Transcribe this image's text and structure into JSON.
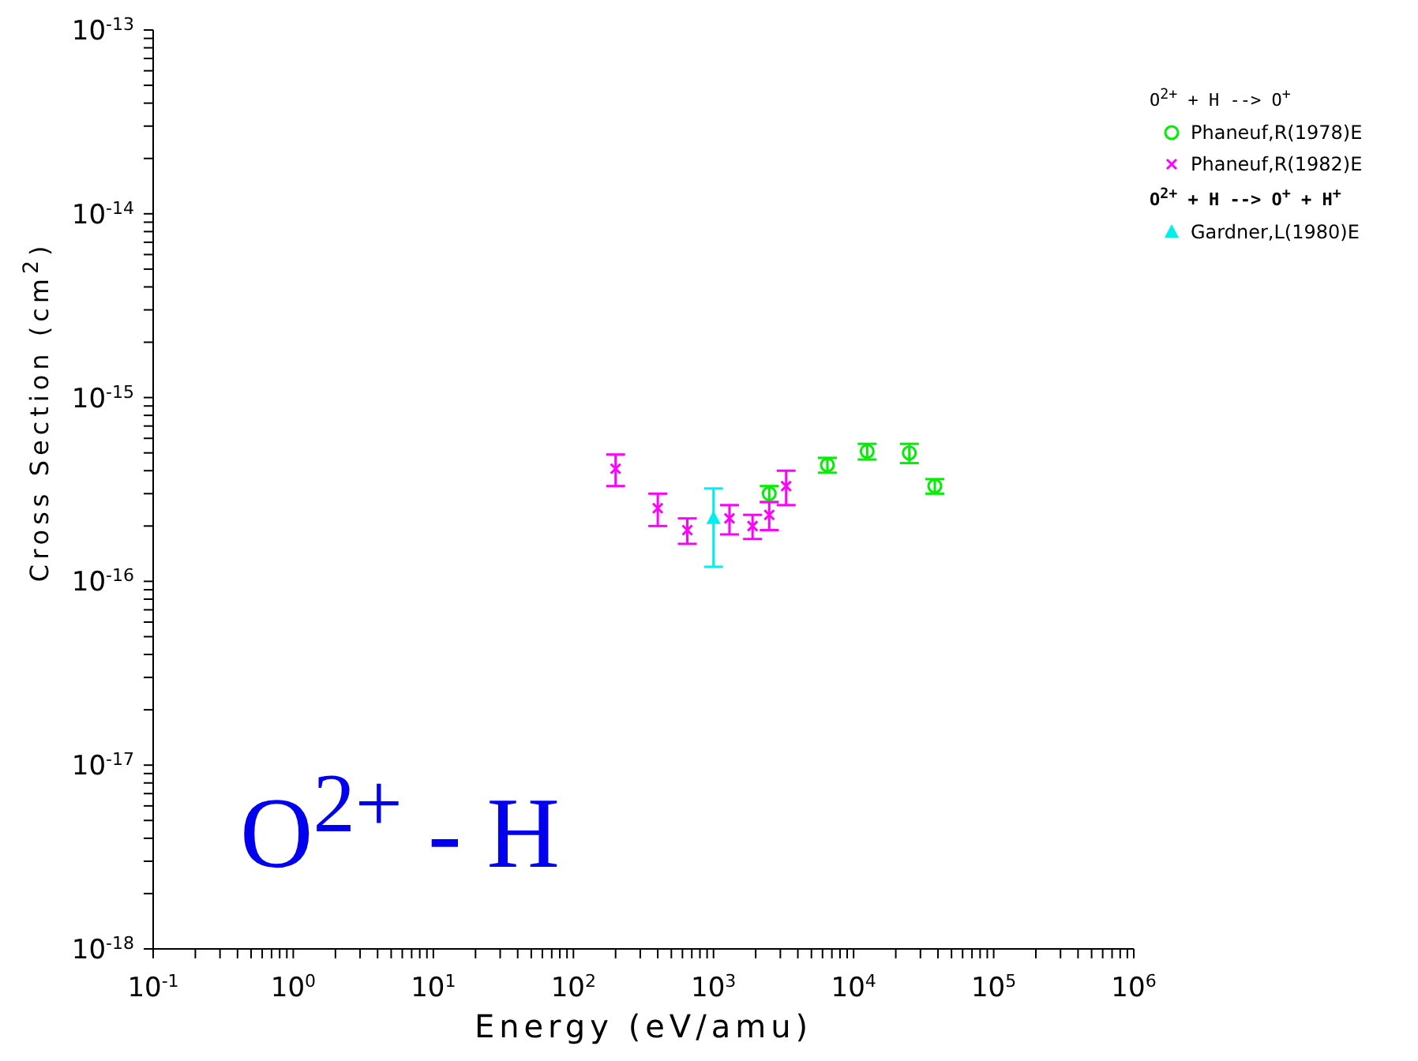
{
  "chart_data": {
    "type": "scatter",
    "xlabel": "Energy (eV/amu)",
    "ylabel": "Cross Section (cm$^{2}$)",
    "log": "xy",
    "legend": "right",
    "xlim": [
      0.1,
      1000000
    ],
    "ylim": [
      1e-18,
      1e-13
    ],
    "xticks": [
      {
        "value": 0.1,
        "label": "10$^{-1}$"
      },
      {
        "value": 0.2,
        "label": null
      },
      {
        "value": 0.3,
        "label": null
      },
      {
        "value": 0.4,
        "label": null
      },
      {
        "value": 0.5,
        "label": null
      },
      {
        "value": 0.6,
        "label": null
      },
      {
        "value": 0.7,
        "label": null
      },
      {
        "value": 0.8,
        "label": null
      },
      {
        "value": 0.9,
        "label": null
      },
      {
        "value": 1,
        "label": "10$^{0}$"
      },
      {
        "value": 2,
        "label": null
      },
      {
        "value": 3,
        "label": null
      },
      {
        "value": 4,
        "label": null
      },
      {
        "value": 5,
        "label": null
      },
      {
        "value": 6,
        "label": null
      },
      {
        "value": 7,
        "label": null
      },
      {
        "value": 8,
        "label": null
      },
      {
        "value": 9,
        "label": null
      },
      {
        "value": 10,
        "label": "10$^{1}$"
      },
      {
        "value": 20,
        "label": null
      },
      {
        "value": 30,
        "label": null
      },
      {
        "value": 40,
        "label": null
      },
      {
        "value": 50,
        "label": null
      },
      {
        "value": 60,
        "label": null
      },
      {
        "value": 70,
        "label": null
      },
      {
        "value": 80,
        "label": null
      },
      {
        "value": 90,
        "label": null
      },
      {
        "value": 100,
        "label": "10$^{2}$"
      },
      {
        "value": 200,
        "label": null
      },
      {
        "value": 300,
        "label": null
      },
      {
        "value": 400,
        "label": null
      },
      {
        "value": 500,
        "label": null
      },
      {
        "value": 600,
        "label": null
      },
      {
        "value": 700,
        "label": null
      },
      {
        "value": 800,
        "label": null
      },
      {
        "value": 900,
        "label": null
      },
      {
        "value": 1000,
        "label": "10$^{3}$"
      },
      {
        "value": 2000,
        "label": null
      },
      {
        "value": 3000,
        "label": null
      },
      {
        "value": 4000,
        "label": null
      },
      {
        "value": 5000,
        "label": null
      },
      {
        "value": 6000,
        "label": null
      },
      {
        "value": 7000,
        "label": null
      },
      {
        "value": 8000,
        "label": null
      },
      {
        "value": 9000,
        "label": null
      },
      {
        "value": 10000,
        "label": "10$^{4}$"
      },
      {
        "value": 20000,
        "label": null
      },
      {
        "value": 30000,
        "label": null
      },
      {
        "value": 40000,
        "label": null
      },
      {
        "value": 50000,
        "label": null
      },
      {
        "value": 60000,
        "label": null
      },
      {
        "value": 70000,
        "label": null
      },
      {
        "value": 80000,
        "label": null
      },
      {
        "value": 90000,
        "label": null
      },
      {
        "value": 100000,
        "label": "10$^{5}$"
      },
      {
        "value": 200000,
        "label": null
      },
      {
        "value": 300000,
        "label": null
      },
      {
        "value": 400000,
        "label": null
      },
      {
        "value": 500000,
        "label": null
      },
      {
        "value": 600000,
        "label": null
      },
      {
        "value": 700000,
        "label": null
      },
      {
        "value": 800000,
        "label": null
      },
      {
        "value": 900000,
        "label": null
      },
      {
        "value": 1000000,
        "label": "10$^{6}$"
      }
    ],
    "yticks": [
      {
        "value": 1e-18,
        "label": "10$^{-18}$"
      },
      {
        "value": 2e-18,
        "label": null
      },
      {
        "value": 3e-18,
        "label": null
      },
      {
        "value": 4e-18,
        "label": null
      },
      {
        "value": 5e-18,
        "label": null
      },
      {
        "value": 6e-18,
        "label": null
      },
      {
        "value": 7e-18,
        "label": null
      },
      {
        "value": 8e-18,
        "label": null
      },
      {
        "value": 9e-18,
        "label": null
      },
      {
        "value": 1e-17,
        "label": "10$^{-17}$"
      },
      {
        "value": 2e-17,
        "label": null
      },
      {
        "value": 3e-17,
        "label": null
      },
      {
        "value": 4e-17,
        "label": null
      },
      {
        "value": 5e-17,
        "label": null
      },
      {
        "value": 6e-17,
        "label": null
      },
      {
        "value": 7e-17,
        "label": null
      },
      {
        "value": 8e-17,
        "label": null
      },
      {
        "value": 9e-17,
        "label": null
      },
      {
        "value": 1e-16,
        "label": "10$^{-16}$"
      },
      {
        "value": 2e-16,
        "label": null
      },
      {
        "value": 3e-16,
        "label": null
      },
      {
        "value": 4e-16,
        "label": null
      },
      {
        "value": 5e-16,
        "label": null
      },
      {
        "value": 6e-16,
        "label": null
      },
      {
        "value": 7e-16,
        "label": null
      },
      {
        "value": 8e-16,
        "label": null
      },
      {
        "value": 9e-16,
        "label": null
      },
      {
        "value": 1e-15,
        "label": "10$^{-15}$"
      },
      {
        "value": 2e-15,
        "label": null
      },
      {
        "value": 3e-15,
        "label": null
      },
      {
        "value": 4e-15,
        "label": null
      },
      {
        "value": 5e-15,
        "label": null
      },
      {
        "value": 6e-15,
        "label": null
      },
      {
        "value": 7e-15,
        "label": null
      },
      {
        "value": 8e-15,
        "label": null
      },
      {
        "value": 9e-15,
        "label": null
      },
      {
        "value": 1e-14,
        "label": "10$^{-14}$"
      },
      {
        "value": 2e-14,
        "label": null
      },
      {
        "value": 3e-14,
        "label": null
      },
      {
        "value": 4e-14,
        "label": null
      },
      {
        "value": 5e-14,
        "label": null
      },
      {
        "value": 6e-14,
        "label": null
      },
      {
        "value": 7e-14,
        "label": null
      },
      {
        "value": 8e-14,
        "label": null
      },
      {
        "value": 9e-14,
        "label": null
      },
      {
        "value": 1e-13,
        "label": "10$^{-13}$"
      }
    ],
    "annotations": [
      "O$^{2+}$ + H --> O$^{+}$",
      "O$^{2+}$ + H --> O$^{+}$ + H$^{+}$",
      "O$^{2+}$ - H"
    ],
    "series": [
      {
        "name": "Phaneuf,R(1978)E",
        "color": "#00ee00",
        "marker": "circle",
        "x": [
          2500,
          6500,
          12500,
          25000,
          38000
        ],
        "values": [
          3e-16,
          4.3e-16,
          5.1e-16,
          5e-16,
          3.3e-16
        ],
        "errors": [
          [
            2.7e-16,
            3.3e-16
          ],
          [
            3.9e-16,
            4.7e-16
          ],
          [
            4.6e-16,
            5.6e-16
          ],
          [
            4.4e-16,
            5.6e-16
          ],
          [
            3e-16,
            3.6e-16
          ]
        ]
      },
      {
        "name": "Phaneuf,R(1982)E",
        "color": "#ff00ff",
        "marker": "cross",
        "x": [
          200,
          400,
          650,
          1300,
          1900,
          2500,
          3300
        ],
        "values": [
          4.1e-16,
          2.5e-16,
          1.9e-16,
          2.2e-16,
          2e-16,
          2.3e-16,
          3.3e-16
        ],
        "errors": [
          [
            3.3e-16,
            4.9e-16
          ],
          [
            2e-16,
            3e-16
          ],
          [
            1.6e-16,
            2.2e-16
          ],
          [
            1.8e-16,
            2.6e-16
          ],
          [
            1.7e-16,
            2.3e-16
          ],
          [
            1.9e-16,
            2.7e-16
          ],
          [
            2.6e-16,
            4e-16
          ]
        ]
      },
      {
        "name": "Gardner,L(1980)E",
        "color": "#00eeee",
        "marker": "triangle",
        "x": [
          1000
        ],
        "values": [
          2.2e-16
        ],
        "errors": [
          [
            1.2e-16,
            3.2e-16
          ]
        ]
      }
    ]
  }
}
